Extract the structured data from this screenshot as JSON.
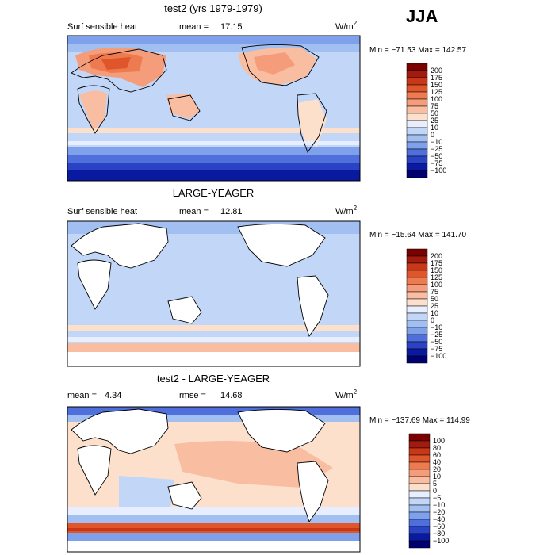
{
  "season": "JJA",
  "chart_data": [
    {
      "type": "heatmap",
      "title": "test2 (yrs 1979-1979)",
      "variable": "Surf sensible heat",
      "units": "W/m",
      "units_exp": "2",
      "stat1_label": "mean =",
      "stat1_value": "17.15",
      "stat2_label": "",
      "stat2_value": "",
      "minmax": "Min = −71.53  Max = 142.57",
      "min": -71.53,
      "max": 142.57,
      "levels": [
        "200",
        "175",
        "150",
        "125",
        "100",
        "75",
        "50",
        "25",
        "10",
        "0",
        "−10",
        "−25",
        "−50",
        "−75",
        "−100"
      ],
      "colors": [
        "#7a0000",
        "#a31a0e",
        "#c83818",
        "#e0552a",
        "#ee7a4f",
        "#f59d7a",
        "#f9bea2",
        "#fde0cc",
        "#e6eeff",
        "#c2d6f8",
        "#a2bff2",
        "#7fa0ea",
        "#4f6fdc",
        "#2a42c4",
        "#0a1aa0",
        "#000070"
      ],
      "land_mask": false
    },
    {
      "type": "heatmap",
      "title": "LARGE-YEAGER",
      "variable": "Surf sensible heat",
      "units": "W/m",
      "units_exp": "2",
      "stat1_label": "mean =",
      "stat1_value": "12.81",
      "stat2_label": "",
      "stat2_value": "",
      "minmax": "Min = −15.64  Max = 141.70",
      "min": -15.64,
      "max": 141.7,
      "levels": [
        "200",
        "175",
        "150",
        "125",
        "100",
        "75",
        "50",
        "25",
        "10",
        "0",
        "−10",
        "−25",
        "−50",
        "−75",
        "−100"
      ],
      "colors": [
        "#7a0000",
        "#a31a0e",
        "#c83818",
        "#e0552a",
        "#ee7a4f",
        "#f59d7a",
        "#f9bea2",
        "#fde0cc",
        "#e6eeff",
        "#c2d6f8",
        "#a2bff2",
        "#7fa0ea",
        "#4f6fdc",
        "#2a42c4",
        "#0a1aa0",
        "#000070"
      ],
      "land_mask": true
    },
    {
      "type": "heatmap",
      "title": "test2 - LARGE-YEAGER",
      "variable": "",
      "units": "W/m",
      "units_exp": "2",
      "stat1_label": "mean =",
      "stat1_value": "4.34",
      "stat2_label": "rmse =",
      "stat2_value": "14.68",
      "minmax": "Min = −137.69  Max = 114.99",
      "min": -137.69,
      "max": 114.99,
      "levels": [
        "100",
        "80",
        "60",
        "40",
        "20",
        "10",
        "5",
        "0",
        "−5",
        "−10",
        "−20",
        "−40",
        "−60",
        "−80",
        "−100"
      ],
      "colors": [
        "#7a0000",
        "#a31a0e",
        "#c83818",
        "#e0552a",
        "#ee7a4f",
        "#f59d7a",
        "#f9bea2",
        "#fde0cc",
        "#e6eeff",
        "#c2d6f8",
        "#a2bff2",
        "#7fa0ea",
        "#4f6fdc",
        "#2a42c4",
        "#0a1aa0",
        "#000070"
      ],
      "land_mask": true
    }
  ]
}
